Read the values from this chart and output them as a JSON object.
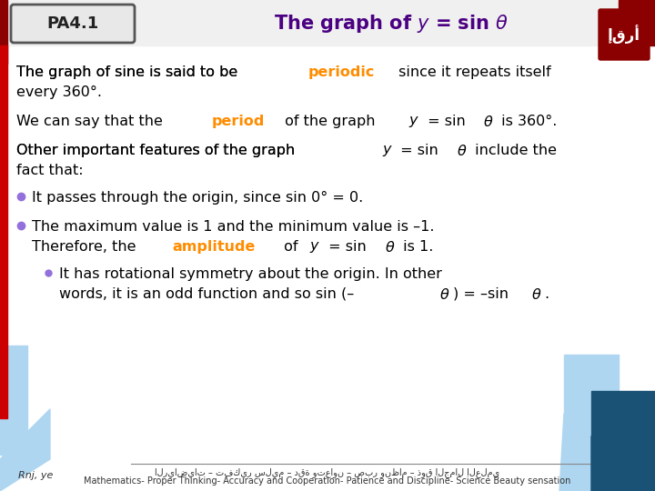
{
  "title": "The graph of $y$ = sin $\\theta$",
  "label": "PA4.1",
  "bg_color": "#ffffff",
  "header_bg": "#ffffff",
  "accent_color": "#8B0000",
  "title_color": "#4B0082",
  "bullet_color": "#9370DB",
  "highlight_orange": "#FF8C00",
  "text_color": "#000000",
  "line1": "The graph of sine is said to be {periodic} since it repeats itself",
  "line2": "every 360°.",
  "line3": "We can say that the {period} of the graph $y$ = sin $\\theta$ is 360°.",
  "line4": "Other important features of the graph $y$ = sin $\\theta$ include the",
  "line5": "fact that:",
  "bullet1": "It passes through the origin, since sin 0° = 0.",
  "bullet2_a": "The maximum value is 1 and the minimum value is –1.",
  "bullet2_b": "Therefore, the {amplitude} of $y$ = sin $\\theta$ is 1.",
  "bullet3_a": "It has rotational symmetry about the origin. In other",
  "bullet3_b": "words, it is an odd function and so sin (–$\\theta$) = –sin $\\theta$.",
  "footer_arabic": "الرياضيات – تفكير سليم – دقة وتعاون – صبر ونظام – ذوق الجمال العلمي",
  "footer_english": "Mathematics- Proper Thinking- Accuracy and Cooperation- Patience and Discipline- Science Beauty sensation"
}
